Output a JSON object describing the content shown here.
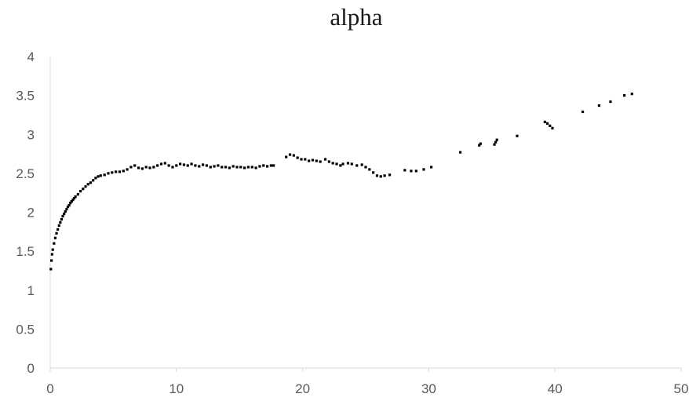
{
  "chart_data": {
    "type": "scatter",
    "title": "alpha",
    "xlabel": "",
    "ylabel": "",
    "xlim": [
      0,
      50
    ],
    "ylim": [
      0,
      4
    ],
    "x_ticks": [
      "0",
      "10",
      "20",
      "30",
      "40",
      "50"
    ],
    "y_ticks": [
      "0",
      "0.5",
      "1",
      "1.5",
      "2",
      "2.5",
      "3",
      "3.5",
      "4"
    ],
    "grid": false,
    "legend": "none",
    "marker_color": "#000000",
    "series": [
      {
        "points": [
          [
            0.05,
            1.27
          ],
          [
            0.1,
            1.38
          ],
          [
            0.15,
            1.46
          ],
          [
            0.2,
            1.52
          ],
          [
            0.3,
            1.6
          ],
          [
            0.4,
            1.67
          ],
          [
            0.5,
            1.73
          ],
          [
            0.6,
            1.78
          ],
          [
            0.7,
            1.83
          ],
          [
            0.8,
            1.87
          ],
          [
            0.9,
            1.91
          ],
          [
            1.0,
            1.95
          ],
          [
            1.1,
            1.98
          ],
          [
            1.2,
            2.01
          ],
          [
            1.3,
            2.04
          ],
          [
            1.4,
            2.07
          ],
          [
            1.5,
            2.09
          ],
          [
            1.6,
            2.12
          ],
          [
            1.7,
            2.14
          ],
          [
            1.8,
            2.16
          ],
          [
            1.9,
            2.18
          ],
          [
            2.0,
            2.2
          ],
          [
            2.2,
            2.23
          ],
          [
            2.4,
            2.27
          ],
          [
            2.6,
            2.3
          ],
          [
            2.8,
            2.33
          ],
          [
            3.0,
            2.36
          ],
          [
            3.2,
            2.38
          ],
          [
            3.4,
            2.41
          ],
          [
            3.6,
            2.44
          ],
          [
            3.8,
            2.46
          ],
          [
            4.0,
            2.47
          ],
          [
            4.3,
            2.48
          ],
          [
            4.6,
            2.5
          ],
          [
            4.9,
            2.51
          ],
          [
            5.2,
            2.52
          ],
          [
            5.5,
            2.52
          ],
          [
            5.8,
            2.53
          ],
          [
            6.1,
            2.55
          ],
          [
            6.4,
            2.58
          ],
          [
            6.7,
            2.6
          ],
          [
            7.0,
            2.57
          ],
          [
            7.3,
            2.56
          ],
          [
            7.6,
            2.58
          ],
          [
            7.9,
            2.57
          ],
          [
            8.2,
            2.58
          ],
          [
            8.5,
            2.6
          ],
          [
            8.8,
            2.62
          ],
          [
            9.1,
            2.63
          ],
          [
            9.4,
            2.6
          ],
          [
            9.7,
            2.58
          ],
          [
            10.0,
            2.6
          ],
          [
            10.3,
            2.62
          ],
          [
            10.6,
            2.61
          ],
          [
            10.9,
            2.6
          ],
          [
            11.2,
            2.62
          ],
          [
            11.5,
            2.6
          ],
          [
            11.8,
            2.59
          ],
          [
            12.1,
            2.61
          ],
          [
            12.4,
            2.6
          ],
          [
            12.7,
            2.58
          ],
          [
            13.0,
            2.59
          ],
          [
            13.3,
            2.6
          ],
          [
            13.6,
            2.58
          ],
          [
            13.9,
            2.58
          ],
          [
            14.2,
            2.57
          ],
          [
            14.5,
            2.59
          ],
          [
            14.8,
            2.58
          ],
          [
            15.1,
            2.58
          ],
          [
            15.4,
            2.57
          ],
          [
            15.7,
            2.58
          ],
          [
            16.0,
            2.58
          ],
          [
            16.3,
            2.57
          ],
          [
            16.6,
            2.59
          ],
          [
            16.9,
            2.6
          ],
          [
            17.2,
            2.59
          ],
          [
            17.5,
            2.6
          ],
          [
            17.7,
            2.6
          ],
          [
            18.7,
            2.71
          ],
          [
            19.0,
            2.74
          ],
          [
            19.3,
            2.73
          ],
          [
            19.6,
            2.7
          ],
          [
            19.9,
            2.68
          ],
          [
            20.2,
            2.68
          ],
          [
            20.5,
            2.66
          ],
          [
            20.8,
            2.67
          ],
          [
            21.1,
            2.66
          ],
          [
            21.4,
            2.65
          ],
          [
            21.8,
            2.68
          ],
          [
            22.1,
            2.65
          ],
          [
            22.4,
            2.63
          ],
          [
            22.7,
            2.62
          ],
          [
            23.0,
            2.6
          ],
          [
            23.2,
            2.62
          ],
          [
            23.6,
            2.63
          ],
          [
            23.9,
            2.62
          ],
          [
            24.3,
            2.6
          ],
          [
            24.7,
            2.61
          ],
          [
            25.0,
            2.58
          ],
          [
            25.3,
            2.55
          ],
          [
            25.6,
            2.51
          ],
          [
            25.9,
            2.47
          ],
          [
            26.2,
            2.46
          ],
          [
            26.5,
            2.47
          ],
          [
            26.9,
            2.48
          ],
          [
            28.1,
            2.54
          ],
          [
            28.6,
            2.53
          ],
          [
            29.0,
            2.53
          ],
          [
            29.6,
            2.55
          ],
          [
            30.2,
            2.58
          ],
          [
            32.5,
            2.77
          ],
          [
            34.0,
            2.86
          ],
          [
            34.1,
            2.88
          ],
          [
            35.2,
            2.87
          ],
          [
            35.3,
            2.9
          ],
          [
            35.4,
            2.93
          ],
          [
            37.0,
            2.98
          ],
          [
            39.2,
            3.16
          ],
          [
            39.4,
            3.14
          ],
          [
            39.6,
            3.11
          ],
          [
            39.8,
            3.08
          ],
          [
            42.2,
            3.29
          ],
          [
            43.5,
            3.37
          ],
          [
            44.4,
            3.42
          ],
          [
            45.5,
            3.5
          ],
          [
            46.1,
            3.52
          ]
        ]
      }
    ]
  }
}
